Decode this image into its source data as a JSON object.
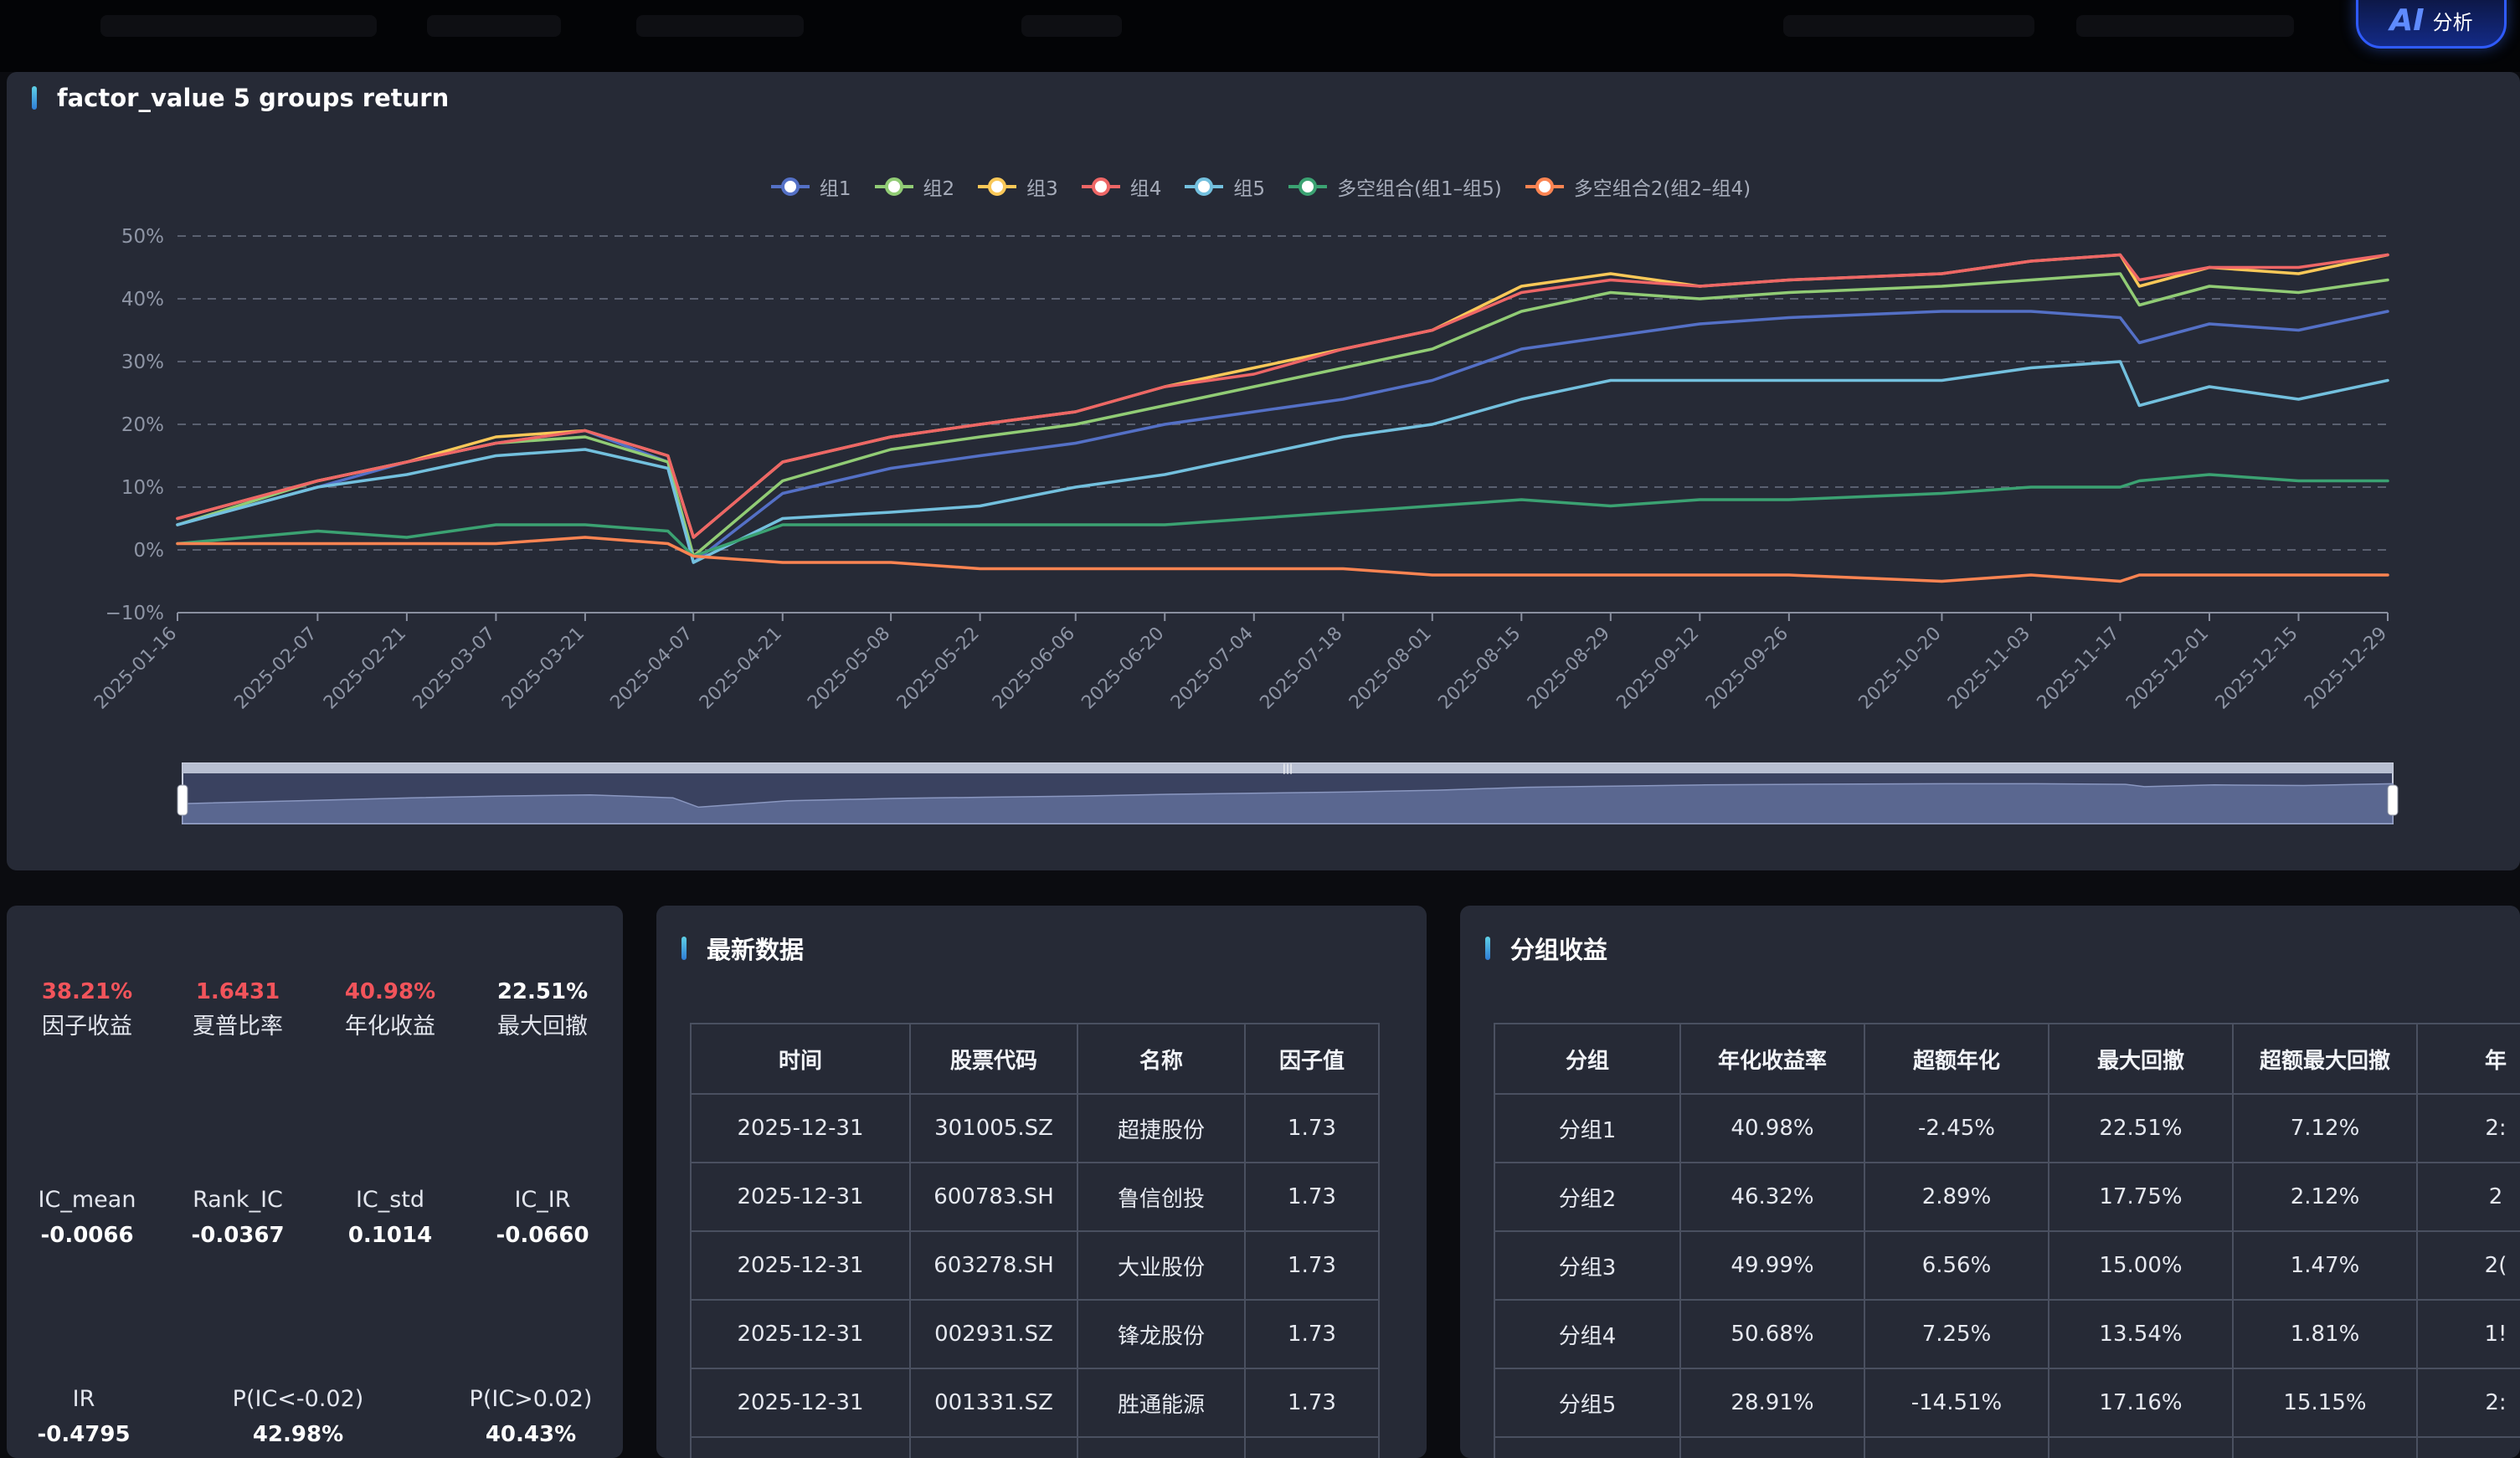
{
  "top_bar": {
    "ai_button": {
      "icon": "ai-icon",
      "icon_text": "AI",
      "label": "分析"
    }
  },
  "chart_panel": {
    "title": "factor_value 5 groups return"
  },
  "chart_data": {
    "type": "line",
    "title": "factor_value 5 groups return",
    "y_ticks": [
      "50%",
      "40%",
      "30%",
      "20%",
      "10%",
      "0%",
      "−10%"
    ],
    "ylim": [
      -10,
      50
    ],
    "grid": true,
    "legend_position": "top-center",
    "x_ticks": [
      "2025-01-16",
      "2025-02-07",
      "2025-02-21",
      "2025-03-07",
      "2025-03-21",
      "2025-04-07",
      "2025-04-21",
      "2025-05-08",
      "2025-05-22",
      "2025-06-06",
      "2025-06-20",
      "2025-07-04",
      "2025-07-18",
      "2025-08-01",
      "2025-08-15",
      "2025-08-29",
      "2025-09-12",
      "2025-09-26",
      "2025-10-20",
      "2025-11-03",
      "2025-11-17",
      "2025-12-01",
      "2025-12-15",
      "2025-12-29"
    ],
    "x": [
      "2025-01-16",
      "2025-02-07",
      "2025-02-21",
      "2025-03-07",
      "2025-03-21",
      "2025-04-03",
      "2025-04-07",
      "2025-04-21",
      "2025-05-08",
      "2025-05-22",
      "2025-06-06",
      "2025-06-20",
      "2025-07-04",
      "2025-07-18",
      "2025-08-01",
      "2025-08-15",
      "2025-08-29",
      "2025-09-12",
      "2025-09-26",
      "2025-10-20",
      "2025-11-03",
      "2025-11-17",
      "2025-11-20",
      "2025-12-01",
      "2025-12-15",
      "2025-12-29"
    ],
    "series": [
      {
        "name": "组1",
        "color": "#5470c6",
        "values": [
          4,
          10,
          14,
          17,
          19,
          14,
          -2,
          9,
          13,
          15,
          17,
          20,
          22,
          24,
          27,
          32,
          34,
          36,
          37,
          38,
          38,
          37,
          33,
          36,
          35,
          38
        ]
      },
      {
        "name": "组2",
        "color": "#91cc75",
        "values": [
          4,
          11,
          14,
          17,
          18,
          14,
          -1,
          11,
          16,
          18,
          20,
          23,
          26,
          29,
          32,
          38,
          41,
          40,
          41,
          42,
          43,
          44,
          39,
          42,
          41,
          43
        ]
      },
      {
        "name": "组3",
        "color": "#fac858",
        "values": [
          5,
          11,
          14,
          18,
          19,
          15,
          2,
          14,
          18,
          20,
          22,
          26,
          29,
          32,
          35,
          42,
          44,
          42,
          43,
          44,
          46,
          47,
          42,
          45,
          44,
          47
        ]
      },
      {
        "name": "组4",
        "color": "#ee6666",
        "values": [
          5,
          11,
          14,
          17,
          19,
          15,
          2,
          14,
          18,
          20,
          22,
          26,
          28,
          32,
          35,
          41,
          43,
          42,
          43,
          44,
          46,
          47,
          43,
          45,
          45,
          47
        ]
      },
      {
        "name": "组5",
        "color": "#73c0de",
        "values": [
          4,
          10,
          12,
          15,
          16,
          13,
          -2,
          5,
          6,
          7,
          10,
          12,
          15,
          18,
          20,
          24,
          27,
          27,
          27,
          27,
          29,
          30,
          23,
          26,
          24,
          27
        ]
      },
      {
        "name": "多空组合(组1–组5)",
        "color": "#3ba272",
        "values": [
          1,
          3,
          2,
          4,
          4,
          3,
          -1,
          4,
          4,
          4,
          4,
          4,
          5,
          6,
          7,
          8,
          7,
          8,
          8,
          9,
          10,
          10,
          11,
          12,
          11,
          11
        ]
      },
      {
        "name": "多空组合2(组2–组4)",
        "color": "#fc8452",
        "values": [
          1,
          1,
          1,
          1,
          2,
          1,
          -1,
          -2,
          -2,
          -3,
          -3,
          -3,
          -3,
          -3,
          -4,
          -4,
          -4,
          -4,
          -4,
          -5,
          -4,
          -5,
          -4,
          -4,
          -4,
          -4
        ]
      }
    ]
  },
  "stats_panel": {
    "row1": [
      {
        "value": "38.21%",
        "label": "因子收益",
        "tone": "red"
      },
      {
        "value": "1.6431",
        "label": "夏普比率",
        "tone": "red"
      },
      {
        "value": "40.98%",
        "label": "年化收益",
        "tone": "red"
      },
      {
        "value": "22.51%",
        "label": "最大回撤",
        "tone": "white"
      }
    ],
    "row2": [
      {
        "label": "IC_mean",
        "value": "-0.0066"
      },
      {
        "label": "Rank_IC",
        "value": "-0.0367"
      },
      {
        "label": "IC_std",
        "value": "0.1014"
      },
      {
        "label": "IC_IR",
        "value": "-0.0660"
      }
    ],
    "row3": [
      {
        "label": "IR",
        "value": "-0.4795"
      },
      {
        "label": "P(IC<-0.02)",
        "value": "42.98%"
      },
      {
        "label": "P(IC>0.02)",
        "value": "40.43%"
      }
    ]
  },
  "latest_panel": {
    "title": "最新数据",
    "headers": [
      "时间",
      "股票代码",
      "名称",
      "因子值"
    ],
    "rows": [
      [
        "2025-12-31",
        "301005.SZ",
        "超捷股份",
        "1.73"
      ],
      [
        "2025-12-31",
        "600783.SH",
        "鲁信创投",
        "1.73"
      ],
      [
        "2025-12-31",
        "603278.SH",
        "大业股份",
        "1.73"
      ],
      [
        "2025-12-31",
        "002931.SZ",
        "锋龙股份",
        "1.73"
      ],
      [
        "2025-12-31",
        "001331.SZ",
        "胜通能源",
        "1.73"
      ]
    ]
  },
  "group_panel": {
    "title": "分组收益",
    "headers": [
      "分组",
      "年化收益率",
      "超额年化",
      "最大回撤",
      "超额最大回撤",
      "年"
    ],
    "rows": [
      [
        "分组1",
        "40.98%",
        "-2.45%",
        "22.51%",
        "7.12%",
        "2:"
      ],
      [
        "分组2",
        "46.32%",
        "2.89%",
        "17.75%",
        "2.12%",
        "2"
      ],
      [
        "分组3",
        "49.99%",
        "6.56%",
        "15.00%",
        "1.47%",
        "2("
      ],
      [
        "分组4",
        "50.68%",
        "7.25%",
        "13.54%",
        "1.81%",
        "1!"
      ],
      [
        "分组5",
        "28.91%",
        "-14.51%",
        "17.16%",
        "15.15%",
        "2:"
      ]
    ]
  }
}
